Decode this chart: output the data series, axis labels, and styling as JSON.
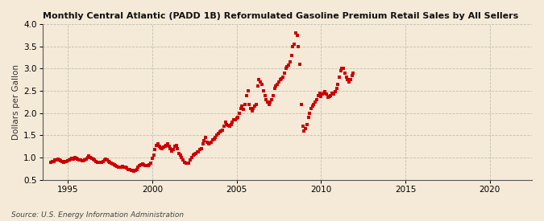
{
  "title": "Monthly Central Atlantic (PADD 1B) Reformulated Gasoline Premium Retail Sales by All Sellers",
  "ylabel": "Dollars per Gallon",
  "source": "Source: U.S. Energy Information Administration",
  "bg_color": "#f5ead8",
  "marker_color": "#cc0000",
  "xlim": [
    1993.5,
    2022.5
  ],
  "ylim": [
    0.5,
    4.0
  ],
  "yticks": [
    0.5,
    1.0,
    1.5,
    2.0,
    2.5,
    3.0,
    3.5,
    4.0
  ],
  "xticks": [
    1995,
    2000,
    2005,
    2010,
    2015,
    2020
  ],
  "data": [
    [
      1994.0,
      0.9
    ],
    [
      1994.08,
      0.91
    ],
    [
      1994.17,
      0.92
    ],
    [
      1994.25,
      0.94
    ],
    [
      1994.33,
      0.95
    ],
    [
      1994.42,
      0.96
    ],
    [
      1994.5,
      0.95
    ],
    [
      1994.58,
      0.93
    ],
    [
      1994.67,
      0.91
    ],
    [
      1994.75,
      0.9
    ],
    [
      1994.83,
      0.91
    ],
    [
      1994.92,
      0.92
    ],
    [
      1995.0,
      0.93
    ],
    [
      1995.08,
      0.95
    ],
    [
      1995.17,
      0.97
    ],
    [
      1995.25,
      0.98
    ],
    [
      1995.33,
      0.96
    ],
    [
      1995.42,
      1.0
    ],
    [
      1995.5,
      0.99
    ],
    [
      1995.58,
      0.97
    ],
    [
      1995.67,
      0.95
    ],
    [
      1995.75,
      0.94
    ],
    [
      1995.83,
      0.93
    ],
    [
      1995.92,
      0.93
    ],
    [
      1996.0,
      0.94
    ],
    [
      1996.08,
      0.97
    ],
    [
      1996.17,
      1.01
    ],
    [
      1996.25,
      1.03
    ],
    [
      1996.33,
      1.0
    ],
    [
      1996.42,
      0.98
    ],
    [
      1996.5,
      0.96
    ],
    [
      1996.58,
      0.94
    ],
    [
      1996.67,
      0.92
    ],
    [
      1996.75,
      0.9
    ],
    [
      1996.83,
      0.89
    ],
    [
      1996.92,
      0.89
    ],
    [
      1997.0,
      0.9
    ],
    [
      1997.08,
      0.92
    ],
    [
      1997.17,
      0.95
    ],
    [
      1997.25,
      0.96
    ],
    [
      1997.33,
      0.94
    ],
    [
      1997.42,
      0.92
    ],
    [
      1997.5,
      0.9
    ],
    [
      1997.58,
      0.88
    ],
    [
      1997.67,
      0.86
    ],
    [
      1997.75,
      0.84
    ],
    [
      1997.83,
      0.82
    ],
    [
      1997.92,
      0.8
    ],
    [
      1998.0,
      0.79
    ],
    [
      1998.08,
      0.78
    ],
    [
      1998.17,
      0.79
    ],
    [
      1998.25,
      0.8
    ],
    [
      1998.33,
      0.79
    ],
    [
      1998.42,
      0.78
    ],
    [
      1998.5,
      0.76
    ],
    [
      1998.58,
      0.74
    ],
    [
      1998.67,
      0.73
    ],
    [
      1998.75,
      0.72
    ],
    [
      1998.83,
      0.71
    ],
    [
      1998.92,
      0.7
    ],
    [
      1999.0,
      0.72
    ],
    [
      1999.08,
      0.74
    ],
    [
      1999.17,
      0.78
    ],
    [
      1999.25,
      0.82
    ],
    [
      1999.33,
      0.84
    ],
    [
      1999.42,
      0.85
    ],
    [
      1999.5,
      0.84
    ],
    [
      1999.58,
      0.83
    ],
    [
      1999.67,
      0.82
    ],
    [
      1999.75,
      0.82
    ],
    [
      1999.83,
      0.84
    ],
    [
      1999.92,
      0.88
    ],
    [
      2000.0,
      0.98
    ],
    [
      2000.08,
      1.05
    ],
    [
      2000.17,
      1.18
    ],
    [
      2000.25,
      1.28
    ],
    [
      2000.33,
      1.3
    ],
    [
      2000.42,
      1.25
    ],
    [
      2000.5,
      1.22
    ],
    [
      2000.58,
      1.2
    ],
    [
      2000.67,
      1.23
    ],
    [
      2000.75,
      1.25
    ],
    [
      2000.83,
      1.28
    ],
    [
      2000.92,
      1.3
    ],
    [
      2001.0,
      1.25
    ],
    [
      2001.08,
      1.2
    ],
    [
      2001.17,
      1.15
    ],
    [
      2001.25,
      1.18
    ],
    [
      2001.33,
      1.25
    ],
    [
      2001.42,
      1.28
    ],
    [
      2001.5,
      1.2
    ],
    [
      2001.58,
      1.1
    ],
    [
      2001.67,
      1.05
    ],
    [
      2001.75,
      1.0
    ],
    [
      2001.83,
      0.95
    ],
    [
      2001.92,
      0.9
    ],
    [
      2002.0,
      0.88
    ],
    [
      2002.08,
      0.87
    ],
    [
      2002.17,
      0.88
    ],
    [
      2002.25,
      0.95
    ],
    [
      2002.33,
      1.0
    ],
    [
      2002.42,
      1.05
    ],
    [
      2002.5,
      1.08
    ],
    [
      2002.58,
      1.1
    ],
    [
      2002.67,
      1.12
    ],
    [
      2002.75,
      1.13
    ],
    [
      2002.83,
      1.18
    ],
    [
      2002.92,
      1.2
    ],
    [
      2003.0,
      1.3
    ],
    [
      2003.08,
      1.38
    ],
    [
      2003.17,
      1.45
    ],
    [
      2003.25,
      1.35
    ],
    [
      2003.33,
      1.3
    ],
    [
      2003.42,
      1.32
    ],
    [
      2003.5,
      1.35
    ],
    [
      2003.58,
      1.4
    ],
    [
      2003.67,
      1.42
    ],
    [
      2003.75,
      1.45
    ],
    [
      2003.83,
      1.5
    ],
    [
      2003.92,
      1.55
    ],
    [
      2004.0,
      1.58
    ],
    [
      2004.08,
      1.6
    ],
    [
      2004.17,
      1.62
    ],
    [
      2004.25,
      1.7
    ],
    [
      2004.33,
      1.8
    ],
    [
      2004.42,
      1.75
    ],
    [
      2004.5,
      1.72
    ],
    [
      2004.58,
      1.7
    ],
    [
      2004.67,
      1.75
    ],
    [
      2004.75,
      1.8
    ],
    [
      2004.83,
      1.85
    ],
    [
      2004.92,
      1.85
    ],
    [
      2005.0,
      1.88
    ],
    [
      2005.08,
      1.9
    ],
    [
      2005.17,
      2.0
    ],
    [
      2005.25,
      2.1
    ],
    [
      2005.33,
      2.15
    ],
    [
      2005.42,
      2.08
    ],
    [
      2005.5,
      2.2
    ],
    [
      2005.58,
      2.4
    ],
    [
      2005.67,
      2.5
    ],
    [
      2005.75,
      2.2
    ],
    [
      2005.83,
      2.1
    ],
    [
      2005.92,
      2.05
    ],
    [
      2006.0,
      2.1
    ],
    [
      2006.08,
      2.15
    ],
    [
      2006.17,
      2.2
    ],
    [
      2006.25,
      2.6
    ],
    [
      2006.33,
      2.75
    ],
    [
      2006.42,
      2.7
    ],
    [
      2006.5,
      2.65
    ],
    [
      2006.58,
      2.5
    ],
    [
      2006.67,
      2.4
    ],
    [
      2006.75,
      2.3
    ],
    [
      2006.83,
      2.25
    ],
    [
      2006.92,
      2.2
    ],
    [
      2007.0,
      2.25
    ],
    [
      2007.08,
      2.3
    ],
    [
      2007.17,
      2.4
    ],
    [
      2007.25,
      2.55
    ],
    [
      2007.33,
      2.6
    ],
    [
      2007.42,
      2.65
    ],
    [
      2007.5,
      2.7
    ],
    [
      2007.58,
      2.75
    ],
    [
      2007.67,
      2.78
    ],
    [
      2007.75,
      2.8
    ],
    [
      2007.83,
      2.9
    ],
    [
      2007.92,
      3.0
    ],
    [
      2008.0,
      3.05
    ],
    [
      2008.08,
      3.08
    ],
    [
      2008.17,
      3.15
    ],
    [
      2008.25,
      3.3
    ],
    [
      2008.33,
      3.5
    ],
    [
      2008.42,
      3.55
    ],
    [
      2008.5,
      3.8
    ],
    [
      2008.58,
      3.75
    ],
    [
      2008.67,
      3.5
    ],
    [
      2008.75,
      3.1
    ],
    [
      2008.83,
      2.2
    ],
    [
      2008.92,
      1.7
    ],
    [
      2009.0,
      1.6
    ],
    [
      2009.08,
      1.65
    ],
    [
      2009.17,
      1.75
    ],
    [
      2009.25,
      1.9
    ],
    [
      2009.33,
      2.0
    ],
    [
      2009.42,
      2.1
    ],
    [
      2009.5,
      2.15
    ],
    [
      2009.58,
      2.2
    ],
    [
      2009.67,
      2.25
    ],
    [
      2009.75,
      2.3
    ],
    [
      2009.83,
      2.4
    ],
    [
      2009.92,
      2.45
    ],
    [
      2010.0,
      2.38
    ],
    [
      2010.08,
      2.42
    ],
    [
      2010.17,
      2.45
    ],
    [
      2010.25,
      2.48
    ],
    [
      2010.33,
      2.42
    ],
    [
      2010.42,
      2.35
    ],
    [
      2010.5,
      2.38
    ],
    [
      2010.58,
      2.4
    ],
    [
      2010.67,
      2.45
    ],
    [
      2010.75,
      2.42
    ],
    [
      2010.83,
      2.48
    ],
    [
      2010.92,
      2.55
    ],
    [
      2011.0,
      2.65
    ],
    [
      2011.08,
      2.8
    ],
    [
      2011.17,
      2.95
    ],
    [
      2011.25,
      3.0
    ],
    [
      2011.33,
      3.0
    ],
    [
      2011.42,
      2.9
    ],
    [
      2011.5,
      2.8
    ],
    [
      2011.58,
      2.75
    ],
    [
      2011.67,
      2.7
    ],
    [
      2011.75,
      2.75
    ],
    [
      2011.83,
      2.85
    ],
    [
      2011.92,
      2.9
    ]
  ]
}
